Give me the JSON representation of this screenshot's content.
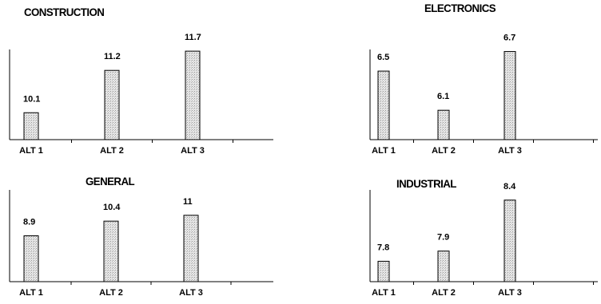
{
  "chart_data": [
    {
      "type": "bar",
      "title": "CONSTRUCTION",
      "categories": [
        "ALT 1",
        "ALT 2",
        "ALT 3"
      ],
      "values": [
        10.1,
        11.2,
        11.7
      ],
      "value_labels": [
        "10.1",
        "11.2",
        "11.7"
      ],
      "xlabel": "",
      "ylabel": "",
      "ylim": [
        9.4,
        12.2
      ],
      "grid": false,
      "bar_color": "#d9d9d9"
    },
    {
      "type": "bar",
      "title": "ELECTRONICS",
      "categories": [
        "ALT 1",
        "ALT 2",
        "ALT 3"
      ],
      "values": [
        6.5,
        6.1,
        6.7
      ],
      "value_labels": [
        "6.5",
        "6.1",
        "6.7"
      ],
      "xlabel": "",
      "ylabel": "",
      "ylim": [
        5.8,
        6.9
      ],
      "grid": false,
      "bar_color": "#d9d9d9"
    },
    {
      "type": "bar",
      "title": "GENERAL",
      "categories": [
        "ALT 1",
        "ALT 2",
        "ALT 3"
      ],
      "values": [
        8.9,
        10.4,
        11
      ],
      "value_labels": [
        "8.9",
        "10.4",
        "11"
      ],
      "xlabel": "",
      "ylabel": "",
      "ylim": [
        4.2,
        13.6
      ],
      "grid": false,
      "bar_color": "#d9d9d9"
    },
    {
      "type": "bar",
      "title": "INDUSTRIAL",
      "categories": [
        "ALT 1",
        "ALT 2",
        "ALT 3"
      ],
      "values": [
        7.8,
        7.9,
        8.4
      ],
      "value_labels": [
        "7.8",
        "7.9",
        "8.4"
      ],
      "xlabel": "",
      "ylabel": "",
      "ylim": [
        7.6,
        8.5
      ],
      "grid": false,
      "bar_color": "#d9d9d9"
    }
  ]
}
